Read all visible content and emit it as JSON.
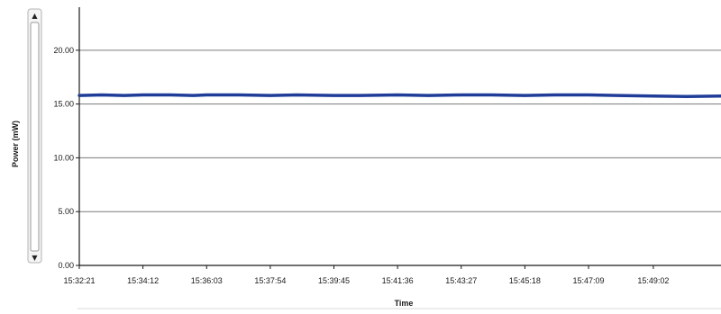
{
  "chart_data": {
    "type": "line",
    "title": "",
    "xlabel": "Time",
    "ylabel": "Power (mW)",
    "ylim": [
      0,
      24
    ],
    "yticks": [
      "0.00",
      "5.00",
      "10.00",
      "15.00",
      "20.00"
    ],
    "grid": true,
    "xticks": [
      "15:32:21",
      "15:34:12",
      "15:36:03",
      "15:37:54",
      "15:39:45",
      "15:41:36",
      "15:43:27",
      "15:45:18",
      "15:47:09",
      "15:49:02"
    ],
    "xlim": [
      "15:32:21",
      "15:51:00"
    ],
    "series": [
      {
        "color": "#1f3c99",
        "x": [
          "15:32:21",
          "15:33:00",
          "15:33:40",
          "15:34:12",
          "15:35:00",
          "15:35:40",
          "15:36:03",
          "15:37:00",
          "15:37:54",
          "15:38:40",
          "15:39:45",
          "15:40:30",
          "15:41:36",
          "15:42:30",
          "15:43:27",
          "15:44:20",
          "15:45:18",
          "15:46:10",
          "15:47:09",
          "15:48:00",
          "15:49:02",
          "15:50:00",
          "15:51:00"
        ],
        "values": [
          15.8,
          15.85,
          15.8,
          15.85,
          15.85,
          15.8,
          15.85,
          15.85,
          15.8,
          15.85,
          15.8,
          15.8,
          15.85,
          15.8,
          15.85,
          15.85,
          15.8,
          15.85,
          15.85,
          15.8,
          15.75,
          15.7,
          15.75
        ]
      }
    ]
  },
  "scrollbar": {
    "up_icon": "triangle-up",
    "down_icon": "triangle-down"
  }
}
